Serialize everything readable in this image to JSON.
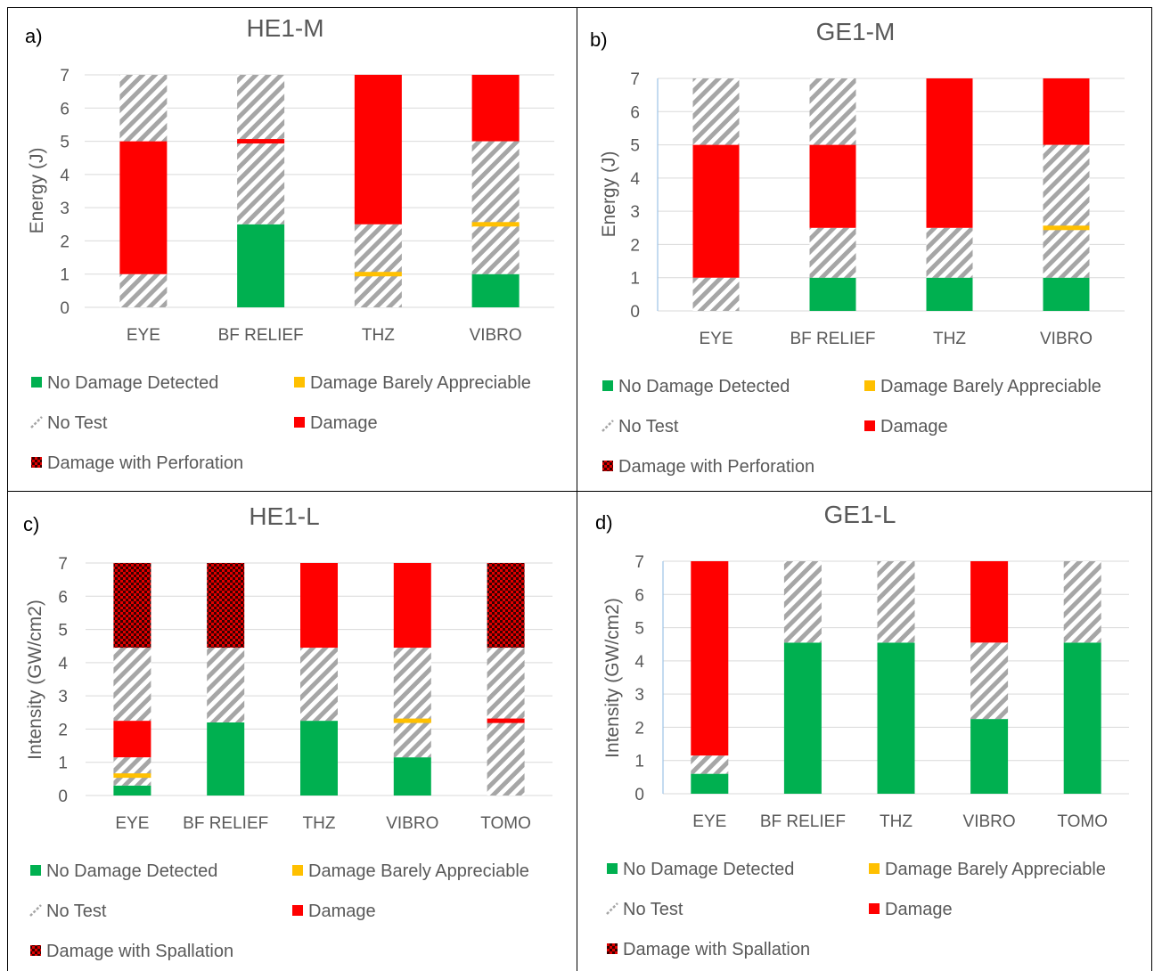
{
  "colors": {
    "no_damage": "#00b050",
    "barely": "#ffc000",
    "no_test_stripe": "#a6a6a6",
    "damage": "#ff0000",
    "perforation_dark": "#3a0000",
    "perforation_red": "#e00000",
    "grid": "#d9d9d9",
    "axis": "#9dc3e6"
  },
  "chart_data": [
    {
      "type": "bar",
      "letter": "a)",
      "title": "HE1-M",
      "ylabel": "Energy (J)",
      "ylim": [
        0,
        7
      ],
      "yticks": [
        "0",
        "1",
        "2",
        "3",
        "4",
        "5",
        "6",
        "7"
      ],
      "categories": [
        "EYE",
        "BF RELIEF",
        "THZ",
        "VIBRO"
      ],
      "bars": [
        [
          {
            "kind": "no_test",
            "from": 0,
            "to": 1
          },
          {
            "kind": "damage",
            "from": 1,
            "to": 5
          },
          {
            "kind": "no_test",
            "from": 5,
            "to": 7
          }
        ],
        [
          {
            "kind": "no_damage",
            "from": 0,
            "to": 2.5
          },
          {
            "kind": "no_test",
            "from": 2.5,
            "to": 7
          },
          {
            "kind": "damage_line",
            "at": 5
          }
        ],
        [
          {
            "kind": "no_test",
            "from": 0,
            "to": 2.5
          },
          {
            "kind": "damage",
            "from": 2.5,
            "to": 7
          },
          {
            "kind": "barely_line",
            "at": 1
          }
        ],
        [
          {
            "kind": "no_damage",
            "from": 0,
            "to": 1
          },
          {
            "kind": "no_test",
            "from": 1,
            "to": 5
          },
          {
            "kind": "damage",
            "from": 5,
            "to": 7
          },
          {
            "kind": "barely_line",
            "at": 2.5
          }
        ]
      ],
      "legend": [
        {
          "kind": "no_damage",
          "label": "No Damage Detected"
        },
        {
          "kind": "barely",
          "label": "Damage Barely Appreciable"
        },
        {
          "kind": "no_test",
          "label": "No Test"
        },
        {
          "kind": "damage",
          "label": "Damage"
        },
        {
          "kind": "perforation",
          "label": "Damage with Perforation"
        }
      ]
    },
    {
      "type": "bar",
      "letter": "b)",
      "title": "GE1-M",
      "ylabel": "Energy (J)",
      "ylim": [
        0,
        7
      ],
      "yticks": [
        "0",
        "1",
        "2",
        "3",
        "4",
        "5",
        "6",
        "7"
      ],
      "categories": [
        "EYE",
        "BF RELIEF",
        "THZ",
        "VIBRO"
      ],
      "bars": [
        [
          {
            "kind": "no_test",
            "from": 0,
            "to": 1
          },
          {
            "kind": "damage",
            "from": 1,
            "to": 5
          },
          {
            "kind": "no_test",
            "from": 5,
            "to": 7
          }
        ],
        [
          {
            "kind": "no_damage",
            "from": 0,
            "to": 1
          },
          {
            "kind": "no_test",
            "from": 1,
            "to": 2.5
          },
          {
            "kind": "damage",
            "from": 2.5,
            "to": 5
          },
          {
            "kind": "no_test",
            "from": 5,
            "to": 7
          }
        ],
        [
          {
            "kind": "no_damage",
            "from": 0,
            "to": 1
          },
          {
            "kind": "no_test",
            "from": 1,
            "to": 2.5
          },
          {
            "kind": "damage",
            "from": 2.5,
            "to": 7
          }
        ],
        [
          {
            "kind": "no_damage",
            "from": 0,
            "to": 1
          },
          {
            "kind": "no_test",
            "from": 1,
            "to": 5
          },
          {
            "kind": "damage",
            "from": 5,
            "to": 7
          },
          {
            "kind": "barely_line",
            "at": 2.5
          }
        ]
      ],
      "legend": [
        {
          "kind": "no_damage",
          "label": "No Damage Detected"
        },
        {
          "kind": "barely",
          "label": "Damage Barely Appreciable"
        },
        {
          "kind": "no_test",
          "label": "No Test"
        },
        {
          "kind": "damage",
          "label": "Damage"
        },
        {
          "kind": "perforation",
          "label": "Damage with Perforation"
        }
      ]
    },
    {
      "type": "bar",
      "letter": "c)",
      "title": "HE1-L",
      "ylabel": "Intensity (GW/cm2)",
      "ylim": [
        0,
        7
      ],
      "yticks": [
        "0",
        "1",
        "2",
        "3",
        "4",
        "5",
        "6",
        "7"
      ],
      "categories": [
        "EYE",
        "BF RELIEF",
        "THZ",
        "VIBRO",
        "TOMO"
      ],
      "bars": [
        [
          {
            "kind": "no_damage",
            "from": 0,
            "to": 0.3
          },
          {
            "kind": "no_test",
            "from": 0.3,
            "to": 1.15
          },
          {
            "kind": "damage",
            "from": 1.15,
            "to": 2.25
          },
          {
            "kind": "no_test",
            "from": 2.25,
            "to": 4.45
          },
          {
            "kind": "perforation",
            "from": 4.45,
            "to": 7
          },
          {
            "kind": "barely_line",
            "at": 0.6
          }
        ],
        [
          {
            "kind": "no_damage",
            "from": 0,
            "to": 2.2
          },
          {
            "kind": "no_test",
            "from": 2.2,
            "to": 4.45
          },
          {
            "kind": "perforation",
            "from": 4.45,
            "to": 7
          }
        ],
        [
          {
            "kind": "no_damage",
            "from": 0,
            "to": 2.25
          },
          {
            "kind": "no_test",
            "from": 2.25,
            "to": 4.45
          },
          {
            "kind": "damage",
            "from": 4.45,
            "to": 7
          }
        ],
        [
          {
            "kind": "no_damage",
            "from": 0,
            "to": 1.15
          },
          {
            "kind": "no_test",
            "from": 1.15,
            "to": 4.45
          },
          {
            "kind": "damage",
            "from": 4.45,
            "to": 7
          },
          {
            "kind": "barely_line",
            "at": 2.25
          }
        ],
        [
          {
            "kind": "no_test",
            "from": 0,
            "to": 4.45
          },
          {
            "kind": "perforation",
            "from": 4.45,
            "to": 7
          },
          {
            "kind": "damage_line",
            "at": 2.25
          }
        ]
      ],
      "legend": [
        {
          "kind": "no_damage",
          "label": "No Damage Detected"
        },
        {
          "kind": "barely",
          "label": "Damage Barely Appreciable"
        },
        {
          "kind": "no_test",
          "label": "No Test"
        },
        {
          "kind": "damage",
          "label": "Damage"
        },
        {
          "kind": "perforation",
          "label": "Damage with Spallation"
        }
      ]
    },
    {
      "type": "bar",
      "letter": "d)",
      "title": "GE1-L",
      "ylabel": "Intensity (GW/cm2)",
      "ylim": [
        0,
        7
      ],
      "yticks": [
        "0",
        "1",
        "2",
        "3",
        "4",
        "5",
        "6",
        "7"
      ],
      "categories": [
        "EYE",
        "BF RELIEF",
        "THZ",
        "VIBRO",
        "TOMO"
      ],
      "bars": [
        [
          {
            "kind": "no_damage",
            "from": 0,
            "to": 0.6
          },
          {
            "kind": "no_test",
            "from": 0.6,
            "to": 1.15
          },
          {
            "kind": "damage",
            "from": 1.15,
            "to": 7
          }
        ],
        [
          {
            "kind": "no_damage",
            "from": 0,
            "to": 4.55
          },
          {
            "kind": "no_test",
            "from": 4.55,
            "to": 7
          }
        ],
        [
          {
            "kind": "no_damage",
            "from": 0,
            "to": 4.55
          },
          {
            "kind": "no_test",
            "from": 4.55,
            "to": 7
          }
        ],
        [
          {
            "kind": "no_damage",
            "from": 0,
            "to": 2.25
          },
          {
            "kind": "no_test",
            "from": 2.25,
            "to": 4.55
          },
          {
            "kind": "damage",
            "from": 4.55,
            "to": 7
          }
        ],
        [
          {
            "kind": "no_damage",
            "from": 0,
            "to": 4.55
          },
          {
            "kind": "no_test",
            "from": 4.55,
            "to": 7
          }
        ]
      ],
      "legend": [
        {
          "kind": "no_damage",
          "label": "No Damage Detected"
        },
        {
          "kind": "barely",
          "label": "Damage Barely Appreciable"
        },
        {
          "kind": "no_test",
          "label": "No Test"
        },
        {
          "kind": "damage",
          "label": "Damage"
        },
        {
          "kind": "perforation",
          "label": "Damage with Spallation"
        }
      ]
    }
  ]
}
